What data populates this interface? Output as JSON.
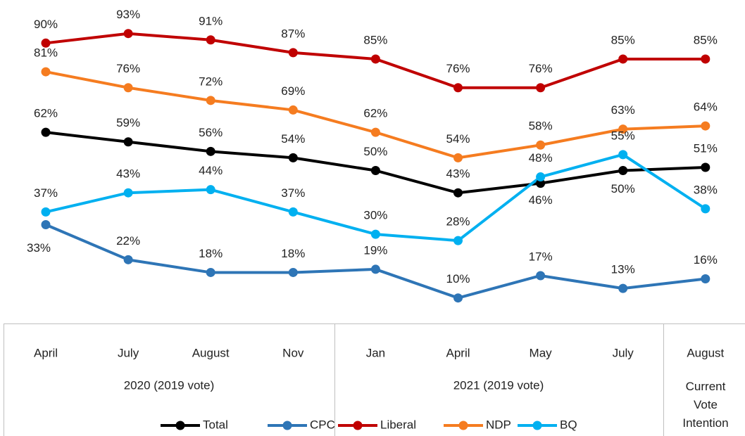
{
  "chart_data": {
    "type": "line",
    "categories": [
      "April",
      "July",
      "August",
      "Nov",
      "Jan",
      "April",
      "May",
      "July",
      "August"
    ],
    "groups": [
      "2020 (2019 vote)",
      "2021 (2019 vote)",
      "Current Vote Intention"
    ],
    "series": [
      {
        "name": "Total",
        "color": "#000000",
        "values": [
          62,
          59,
          56,
          54,
          50,
          43,
          46,
          50,
          51
        ],
        "value_labels": [
          "62%",
          "59%",
          "56%",
          "54%",
          "50%",
          "43%",
          "46%",
          "50%",
          "51%"
        ]
      },
      {
        "name": "CPC",
        "color": "#2e75b6",
        "values": [
          33,
          22,
          18,
          18,
          19,
          10,
          17,
          13,
          16
        ],
        "value_labels": [
          "33%",
          "22%",
          "18%",
          "18%",
          "19%",
          "10%",
          "17%",
          "13%",
          "16%"
        ]
      },
      {
        "name": "Liberal",
        "color": "#c00000",
        "values": [
          90,
          93,
          91,
          87,
          85,
          76,
          76,
          85,
          85
        ],
        "value_labels": [
          "90%",
          "93%",
          "91%",
          "87%",
          "85%",
          "76%",
          "76%",
          "85%",
          "85%"
        ]
      },
      {
        "name": "NDP",
        "color": "#f57c20",
        "values": [
          81,
          76,
          72,
          69,
          62,
          54,
          58,
          63,
          64
        ],
        "value_labels": [
          "81%",
          "76%",
          "72%",
          "69%",
          "62%",
          "54%",
          "58%",
          "63%",
          "64%"
        ]
      },
      {
        "name": "BQ",
        "color": "#00b0f0",
        "values": [
          37,
          43,
          44,
          37,
          30,
          28,
          48,
          55,
          38
        ],
        "value_labels": [
          "37%",
          "43%",
          "44%",
          "37%",
          "30%",
          "28%",
          "48%",
          "55%",
          "38%"
        ]
      }
    ]
  }
}
